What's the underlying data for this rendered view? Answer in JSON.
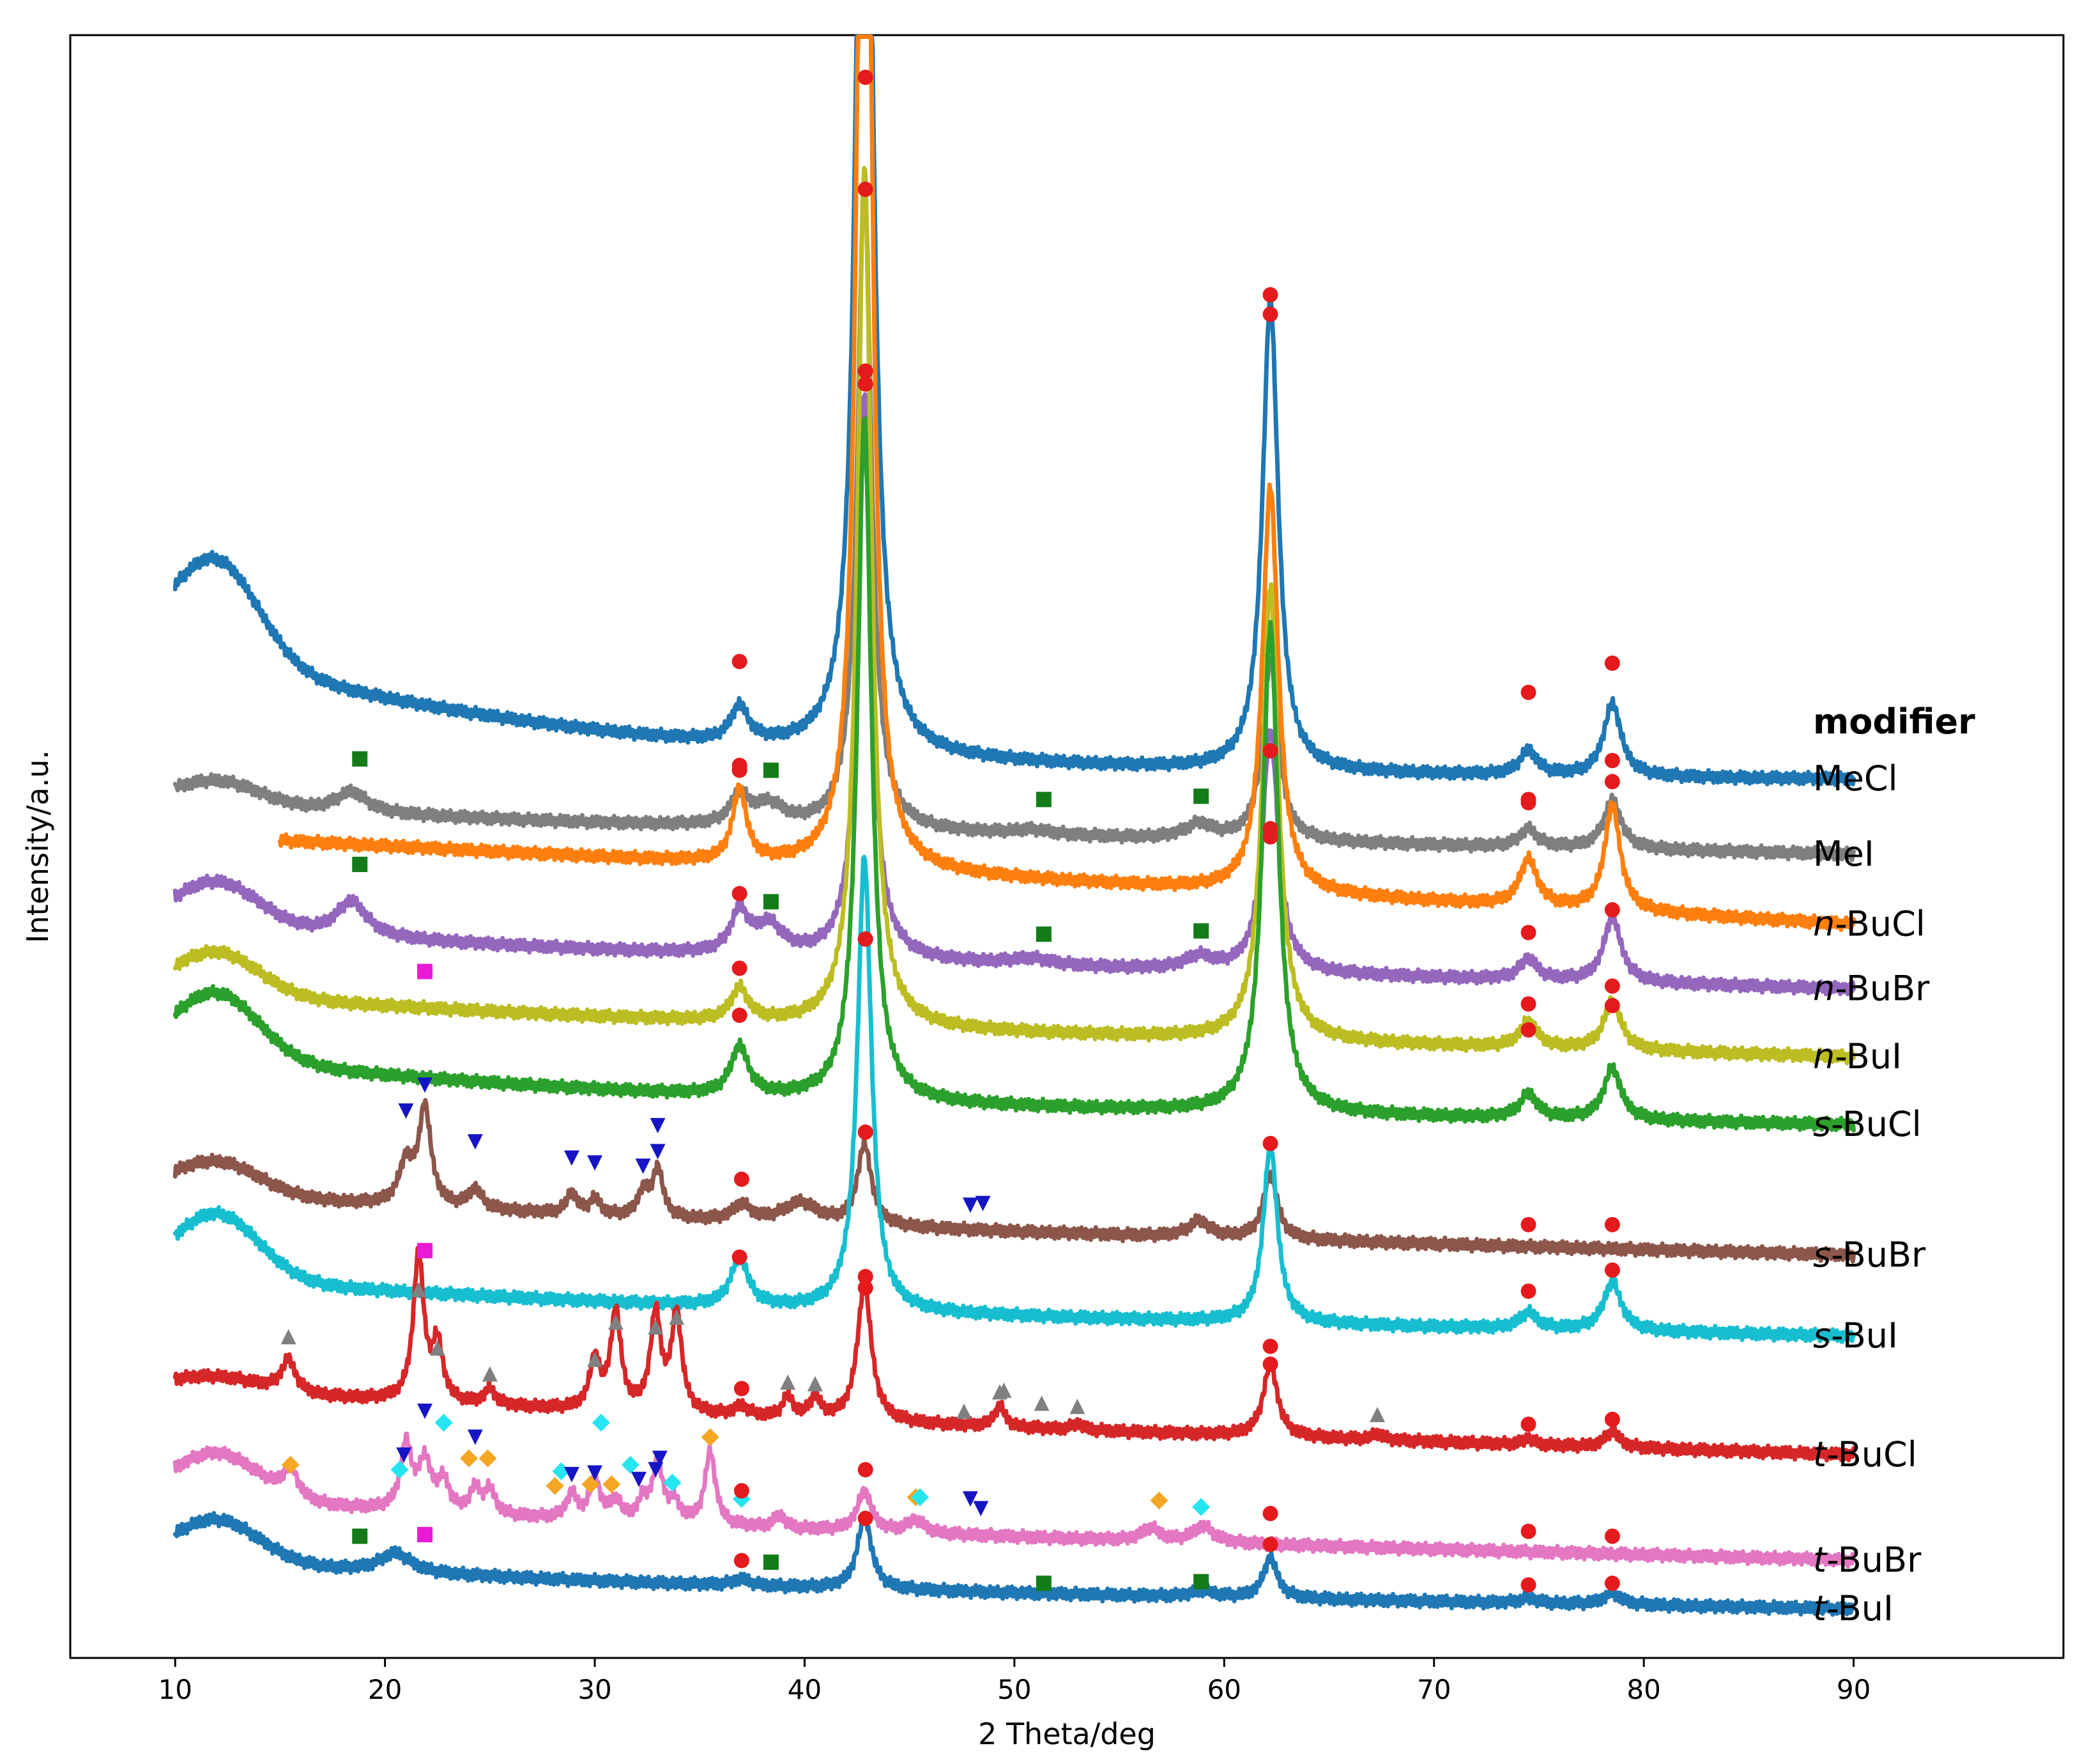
{
  "chart_data": {
    "type": "line",
    "xlabel": "2 Theta/deg",
    "ylabel": "Intensity/a.u.",
    "xlim": [
      5,
      100
    ],
    "ylim": [
      0,
      100
    ],
    "xticks": [
      10,
      20,
      30,
      40,
      50,
      60,
      70,
      80,
      90
    ],
    "yticks_shown": false,
    "legend": {
      "title": "modifier",
      "placement": "right"
    },
    "series": [
      {
        "name": "MeCl",
        "label_prefix": "",
        "label_suffix": "MeCl",
        "color": "#1f77b4",
        "offset": 54.0,
        "amp": 6.0,
        "hump": 8.5,
        "lin": 0.0,
        "peaks": [
          [
            36.9,
            2.2,
            0.5
          ],
          [
            42.85,
            85,
            0.4
          ],
          [
            62.2,
            29,
            0.45
          ],
          [
            74.5,
            1.5,
            0.5
          ],
          [
            78.5,
            4.5,
            0.5
          ]
        ]
      },
      {
        "name": "MeI",
        "label_prefix": "",
        "label_suffix": "MeI",
        "color": "#7f7f7f",
        "offset": 49.5,
        "amp": 1.5,
        "hump": 1.2,
        "lin": 2.0,
        "peaks": [
          [
            18.4,
            1.3,
            0.9
          ],
          [
            36.9,
            1.8,
            0.5
          ],
          [
            38.3,
            1.3,
            0.9
          ],
          [
            42.85,
            40,
            0.4
          ],
          [
            50.8,
            0.3,
            1.2
          ],
          [
            58.8,
            0.9,
            0.8
          ],
          [
            62.2,
            11,
            0.45
          ],
          [
            74.5,
            1.1,
            0.5
          ],
          [
            78.5,
            3.0,
            0.5
          ]
        ]
      },
      {
        "name": "n-BuCl",
        "label_prefix": "n",
        "label_suffix": "-BuCl",
        "color": "#ff7f0e",
        "offset": 45.2,
        "amp": 0.0,
        "hump": 0.0,
        "lin": 5.5,
        "peaks": [
          [
            36.9,
            4.5,
            0.4
          ],
          [
            42.85,
            95,
            0.35
          ],
          [
            62.2,
            25,
            0.45
          ],
          [
            74.5,
            2.9,
            0.5
          ],
          [
            78.5,
            6.5,
            0.45
          ]
        ]
      },
      {
        "name": "n-BuBr",
        "label_prefix": "n",
        "label_suffix": "-BuBr",
        "color": "#9467bd",
        "offset": 41.2,
        "amp": 2.8,
        "hump": 1.5,
        "lin": 2.5,
        "peaks": [
          [
            18.4,
            2.2,
            0.9
          ],
          [
            36.9,
            2.5,
            0.5
          ],
          [
            38.3,
            1.8,
            0.8
          ],
          [
            42.85,
            35,
            0.4
          ],
          [
            50.8,
            0.4,
            1.2
          ],
          [
            58.8,
            0.8,
            0.8
          ],
          [
            62.2,
            15,
            0.45
          ],
          [
            74.5,
            1.3,
            0.5
          ],
          [
            78.5,
            4.0,
            0.5
          ]
        ]
      },
      {
        "name": "n-BuI",
        "label_prefix": "n",
        "label_suffix": "-BuI",
        "color": "#bcbd22",
        "offset": 37.0,
        "amp": 2.6,
        "hump": 1.5,
        "lin": 2.6,
        "peaks": [
          [
            36.9,
            2.0,
            0.5
          ],
          [
            42.85,
            53,
            0.4
          ],
          [
            62.2,
            28,
            0.45
          ],
          [
            74.5,
            1.6,
            0.5
          ],
          [
            78.5,
            3.0,
            0.5
          ]
        ]
      },
      {
        "name": "s-BuCl",
        "label_prefix": "s",
        "label_suffix": "-BuCl",
        "color": "#2ca02c",
        "offset": 32.8,
        "amp": 4.0,
        "hump": 3.0,
        "lin": 1.5,
        "peaks": [
          [
            36.9,
            3.0,
            0.5
          ],
          [
            42.85,
            42,
            0.4
          ],
          [
            62.2,
            30,
            0.45
          ],
          [
            74.5,
            1.5,
            0.5
          ],
          [
            78.5,
            3.2,
            0.5
          ]
        ]
      },
      {
        "name": "s-BuBr",
        "label_prefix": "s",
        "label_suffix": "-BuBr",
        "color": "#8c564b",
        "offset": 24.8,
        "amp": 2.0,
        "hump": 1.5,
        "lin": 2.5,
        "peaks": [
          [
            21.0,
            2.5,
            0.4
          ],
          [
            21.9,
            6.0,
            0.35
          ],
          [
            24.3,
            1.2,
            0.4
          ],
          [
            28.9,
            1.3,
            0.3
          ],
          [
            30.0,
            1.0,
            0.3
          ],
          [
            32.3,
            1.5,
            0.3
          ],
          [
            33.0,
            3.0,
            0.3
          ],
          [
            37.0,
            1.0,
            0.5
          ],
          [
            39.8,
            1.3,
            1.0
          ],
          [
            42.85,
            5.0,
            0.4
          ],
          [
            58.8,
            1.0,
            0.6
          ],
          [
            62.2,
            4.0,
            0.4
          ]
        ]
      },
      {
        "name": "s-BuI",
        "label_prefix": "s",
        "label_suffix": "-BuI",
        "color": "#17becf",
        "offset": 19.8,
        "amp": 4.0,
        "hump": 1.8,
        "lin": 2.0,
        "peaks": [
          [
            36.9,
            3.0,
            0.5
          ],
          [
            42.85,
            28,
            0.4
          ],
          [
            62.2,
            11,
            0.4
          ],
          [
            74.5,
            1.0,
            0.5
          ],
          [
            78.5,
            3.0,
            0.5
          ]
        ]
      },
      {
        "name": "t-BuCl",
        "label_prefix": "t",
        "label_suffix": "-BuCl",
        "color": "#d62728",
        "offset": 12.5,
        "amp": 0.8,
        "hump": 1.2,
        "lin": 3.0,
        "peaks": [
          [
            15.4,
            2.0,
            0.4
          ],
          [
            21.6,
            9.0,
            0.3
          ],
          [
            22.5,
            3.5,
            0.3
          ],
          [
            25.0,
            1.0,
            0.3
          ],
          [
            30.0,
            3.0,
            0.3
          ],
          [
            31.0,
            6.0,
            0.3
          ],
          [
            32.9,
            6.0,
            0.3
          ],
          [
            33.9,
            6.0,
            0.3
          ],
          [
            37.0,
            0.6,
            0.4
          ],
          [
            39.2,
            1.3,
            0.3
          ],
          [
            40.5,
            1.3,
            0.3
          ],
          [
            42.85,
            8.5,
            0.4
          ],
          [
            49.3,
            1.3,
            0.3
          ],
          [
            53.0,
            0.4,
            0.3
          ],
          [
            62.2,
            4.5,
            0.4
          ],
          [
            67.3,
            0.4,
            0.3
          ],
          [
            74.5,
            0.4,
            0.3
          ],
          [
            78.5,
            1.0,
            0.4
          ]
        ]
      },
      {
        "name": "t-BuBr",
        "label_prefix": "t",
        "label_suffix": "-BuBr",
        "color": "#e377c2",
        "offset": 6.0,
        "amp": 2.8,
        "hump": 1.5,
        "lin": 2.5,
        "peaks": [
          [
            15.5,
            1.8,
            0.4
          ],
          [
            21.0,
            4.0,
            0.3
          ],
          [
            21.9,
            3.0,
            0.4
          ],
          [
            22.8,
            1.8,
            0.3
          ],
          [
            24.3,
            1.5,
            0.3
          ],
          [
            25.0,
            1.5,
            0.3
          ],
          [
            28.9,
            1.5,
            0.3
          ],
          [
            30.0,
            2.5,
            0.3
          ],
          [
            31.0,
            1.2,
            0.3
          ],
          [
            32.3,
            1.2,
            0.3
          ],
          [
            33.0,
            3.5,
            0.3
          ],
          [
            33.8,
            1.2,
            0.3
          ],
          [
            35.5,
            4.5,
            0.3
          ],
          [
            38.8,
            0.8,
            0.3
          ],
          [
            42.85,
            2.5,
            0.4
          ],
          [
            45.3,
            0.8,
            0.5
          ],
          [
            56.5,
            0.8,
            0.5
          ],
          [
            59.0,
            1.0,
            0.6
          ]
        ]
      },
      {
        "name": "t-BuI",
        "label_prefix": "t",
        "label_suffix": "-BuI",
        "color": "#1f77b4",
        "offset": 3.0,
        "amp": 2.6,
        "hump": 1.5,
        "lin": 1.6,
        "peaks": [
          [
            20.5,
            1.2,
            0.9
          ],
          [
            37.0,
            0.4,
            0.5
          ],
          [
            42.85,
            4.5,
            0.4
          ],
          [
            59.0,
            0.4,
            0.6
          ],
          [
            62.2,
            2.5,
            0.4
          ],
          [
            74.5,
            0.3,
            0.5
          ],
          [
            78.5,
            0.7,
            0.5
          ]
        ]
      }
    ],
    "phase_markers": {
      "red_circle": {
        "color": "#e41a1c",
        "shape": "circle"
      },
      "green_square": {
        "color": "#137c19",
        "shape": "square"
      },
      "magenta_square": {
        "color": "#e81ad6",
        "shape": "square"
      },
      "blue_triangle_down": {
        "color": "#1515c4",
        "shape": "triangle-down"
      },
      "gray_triangle_up": {
        "color": "#808080",
        "shape": "triangle-up"
      },
      "orange_diamond": {
        "color": "#f5a623",
        "shape": "diamond"
      },
      "cyan_diamond": {
        "color": "#24e5f0",
        "shape": "diamond"
      }
    },
    "markers": [
      {
        "series": "MeCl",
        "type": "red_circle",
        "x": [
          36.9,
          42.9,
          62.2,
          74.5,
          78.5
        ],
        "y": [
          61.4,
          97.4,
          84.0,
          59.5,
          61.3
        ]
      },
      {
        "series": "MeI",
        "type": "red_circle",
        "x": [
          36.9,
          42.9,
          62.2,
          74.5,
          78.5
        ],
        "y": [
          55.0,
          90.5,
          82.8,
          52.9,
          55.3
        ]
      },
      {
        "series": "MeI",
        "type": "green_square",
        "x": [
          18.8,
          38.4,
          51.4,
          58.9
        ],
        "y": [
          55.4,
          54.7,
          52.9,
          53.1
        ]
      },
      {
        "series": "n-BuCl",
        "type": "red_circle",
        "x": [
          36.9,
          42.9,
          62.2,
          74.5,
          78.5
        ],
        "y": [
          54.7,
          78.5,
          55.9,
          52.7,
          54.0
        ]
      },
      {
        "series": "n-BuBr",
        "type": "red_circle",
        "x": [
          36.9,
          42.9,
          62.2,
          74.5,
          78.5
        ],
        "y": [
          47.1,
          79.3,
          51.1,
          44.7,
          46.1
        ]
      },
      {
        "series": "n-BuBr",
        "type": "green_square",
        "x": [
          18.8,
          38.4,
          51.4,
          58.9
        ],
        "y": [
          48.9,
          46.6,
          44.6,
          44.8
        ]
      },
      {
        "series": "n-BuI",
        "type": "red_circle",
        "x": [
          36.9,
          42.9,
          62.2,
          74.5,
          78.5
        ],
        "y": [
          42.5,
          44.3,
          50.6,
          40.3,
          41.4
        ]
      },
      {
        "series": "n-BuI",
        "type": "magenta_square",
        "x": [
          21.9
        ],
        "y": [
          42.3
        ]
      },
      {
        "series": "s-BuCl",
        "type": "red_circle",
        "x": [
          36.9,
          42.9,
          62.2,
          74.5,
          78.5
        ],
        "y": [
          39.6,
          44.3,
          50.6,
          38.7,
          40.2
        ]
      },
      {
        "series": "s-BuBr",
        "type": "blue_triangle_down",
        "x": [
          21.0,
          21.9,
          24.3,
          28.9,
          30.0,
          32.3,
          33.0,
          33.0,
          47.9,
          48.5
        ],
        "y": [
          33.7,
          35.3,
          31.8,
          30.8,
          30.5,
          30.3,
          31.2,
          32.8,
          27.9,
          28.0
        ]
      },
      {
        "series": "s-BuBr",
        "type": "red_circle",
        "x": [
          37.0,
          42.9,
          62.2,
          74.5,
          78.5
        ],
        "y": [
          29.5,
          32.4,
          31.7,
          26.7,
          26.7
        ]
      },
      {
        "series": "s-BuI",
        "type": "red_circle",
        "x": [
          36.9,
          42.9,
          62.2,
          74.5,
          78.5
        ],
        "y": [
          24.7,
          23.5,
          19.2,
          22.6,
          23.9
        ]
      },
      {
        "series": "s-BuI",
        "type": "magenta_square",
        "x": [
          21.9
        ],
        "y": [
          25.1
        ]
      },
      {
        "series": "t-BuCl",
        "type": "gray_triangle_up",
        "x": [
          15.4,
          21.6,
          22.5,
          25.0,
          30.0,
          31.0,
          32.9,
          33.9,
          39.2,
          40.5,
          47.6,
          49.3,
          49.5,
          51.3,
          53.0,
          67.3
        ],
        "y": [
          19.8,
          22.7,
          19.1,
          17.5,
          18.4,
          20.7,
          20.4,
          21.0,
          17.0,
          16.9,
          15.2,
          16.4,
          16.5,
          15.7,
          15.5,
          15.0
        ]
      },
      {
        "series": "t-BuCl",
        "type": "red_circle",
        "x": [
          37.0,
          42.9,
          62.2,
          74.5,
          78.5
        ],
        "y": [
          16.6,
          22.8,
          18.1,
          14.4,
          14.7
        ]
      },
      {
        "series": "t-BuBr",
        "type": "orange_diamond",
        "x": [
          15.5,
          24.0,
          24.9,
          28.1,
          29.8,
          30.8,
          35.5,
          45.3,
          56.9
        ],
        "y": [
          11.9,
          12.3,
          12.3,
          10.6,
          10.7,
          10.7,
          13.6,
          9.9,
          9.7
        ]
      },
      {
        "series": "t-BuBr",
        "type": "cyan_diamond",
        "x": [
          20.7,
          22.8,
          28.4,
          30.3,
          31.7,
          33.7,
          37.0,
          45.5,
          58.9
        ],
        "y": [
          11.6,
          14.5,
          11.5,
          14.5,
          11.9,
          10.8,
          9.8,
          9.9,
          9.3
        ]
      },
      {
        "series": "t-BuBr",
        "type": "blue_triangle_down",
        "x": [
          20.9,
          21.9,
          24.3,
          28.9,
          30.0,
          32.1,
          32.9,
          33.1,
          47.9,
          48.4
        ],
        "y": [
          12.5,
          15.2,
          13.6,
          11.3,
          11.4,
          11.0,
          11.6,
          12.3,
          9.8,
          9.2
        ]
      },
      {
        "series": "t-BuBr",
        "type": "red_circle",
        "x": [
          37.0,
          42.9,
          62.2,
          74.5,
          78.5
        ],
        "y": [
          10.3,
          11.6,
          8.9,
          7.8,
          7.5
        ]
      },
      {
        "series": "t-BuI",
        "type": "green_square",
        "x": [
          18.8,
          38.4,
          51.4,
          58.9
        ],
        "y": [
          7.5,
          5.9,
          4.6,
          4.7
        ]
      },
      {
        "series": "t-BuI",
        "type": "magenta_square",
        "x": [
          21.9
        ],
        "y": [
          7.6
        ]
      },
      {
        "series": "t-BuI",
        "type": "red_circle",
        "x": [
          37.0,
          42.9,
          62.2,
          74.5,
          78.5
        ],
        "y": [
          6.0,
          8.6,
          7.0,
          4.5,
          4.6
        ]
      }
    ]
  }
}
